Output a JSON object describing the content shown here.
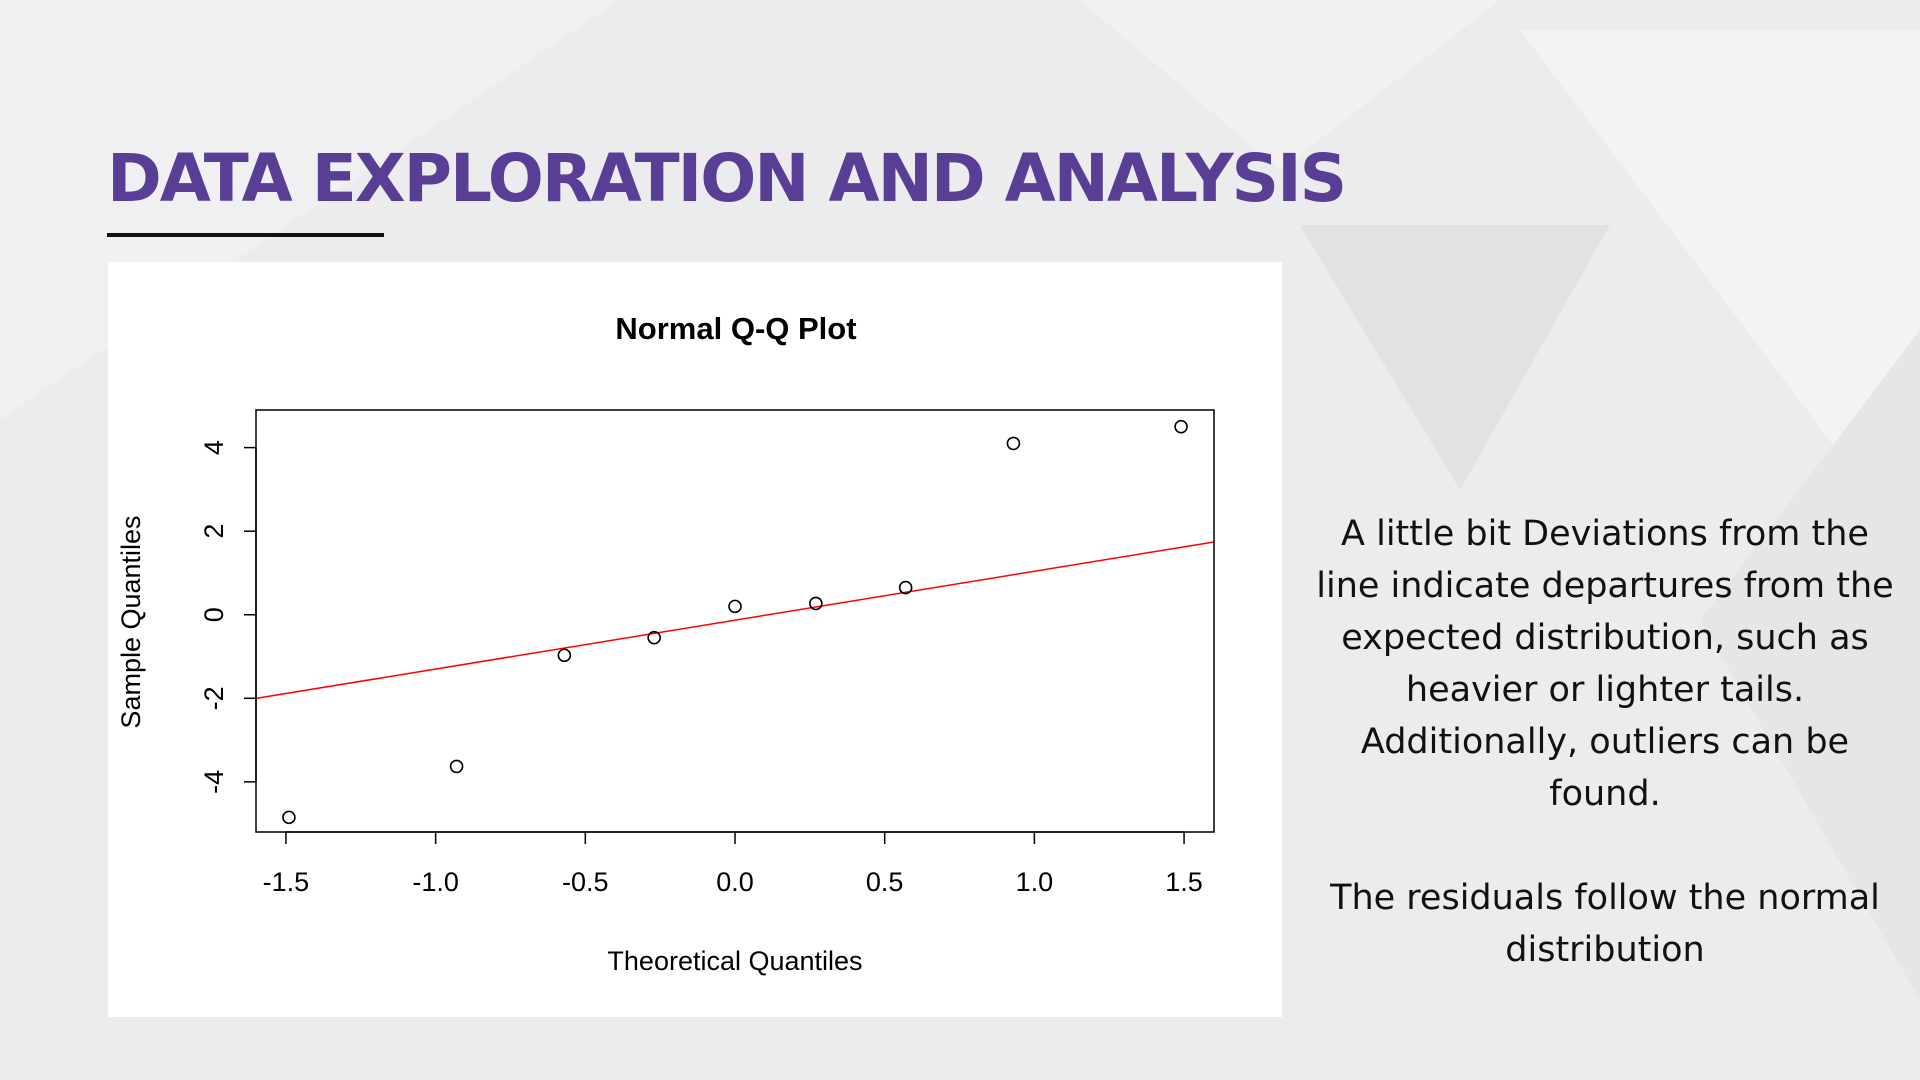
{
  "slide": {
    "title": "DATA EXPLORATION AND ANALYSIS",
    "title_color": "#5a3e96",
    "description_paragraphs": [
      "A little bit Deviations from the line indicate departures from the expected distribution, such as heavier or lighter tails. Additionally, outliers can be found.",
      "The residuals follow the normal distribution"
    ]
  },
  "chart_data": {
    "type": "scatter",
    "title": "Normal Q-Q Plot",
    "xlabel": "Theoretical Quantiles",
    "ylabel": "Sample Quantiles",
    "xlim": [
      -1.6,
      1.6
    ],
    "ylim": [
      -5.2,
      4.9
    ],
    "x_ticks": [
      -1.5,
      -1.0,
      -0.5,
      0.0,
      0.5,
      1.0,
      1.5
    ],
    "x_tick_labels": [
      "-1.5",
      "-1.0",
      "-0.5",
      "0.0",
      "0.5",
      "1.0",
      "1.5"
    ],
    "y_ticks": [
      -4,
      -2,
      0,
      2,
      4
    ],
    "y_tick_labels": [
      "-4",
      "-2",
      "0",
      "2",
      "4"
    ],
    "points": [
      {
        "x": -1.49,
        "y": -4.85
      },
      {
        "x": -0.93,
        "y": -3.63
      },
      {
        "x": -0.57,
        "y": -0.97
      },
      {
        "x": -0.27,
        "y": -0.55
      },
      {
        "x": 0.0,
        "y": 0.2
      },
      {
        "x": 0.27,
        "y": 0.27
      },
      {
        "x": 0.57,
        "y": 0.65
      },
      {
        "x": 0.93,
        "y": 4.1
      },
      {
        "x": 1.49,
        "y": 4.5
      }
    ],
    "reference_line": {
      "intercept": -0.13,
      "slope": 1.17,
      "color": "#ff0000"
    },
    "point_color": "#000000",
    "grid": false,
    "legend": "none"
  }
}
